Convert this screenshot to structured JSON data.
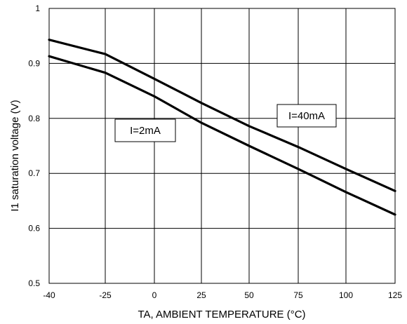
{
  "chart_data": {
    "type": "line",
    "xlabel": "TA, AMBIENT TEMPERATURE (°C)",
    "ylabel": "I1 saturation voltage (V)",
    "xlim": [
      -40,
      125
    ],
    "ylim": [
      0.5,
      1.0
    ],
    "x_ticks": [
      -40,
      -25,
      0,
      25,
      50,
      75,
      100,
      125
    ],
    "x_tick_labels": [
      "-40",
      "-25",
      "0",
      "25",
      "50",
      "75",
      "100",
      "125"
    ],
    "y_ticks": [
      0.5,
      0.6,
      0.7,
      0.8,
      0.9,
      1.0
    ],
    "y_tick_labels": [
      "0.5",
      "0.6",
      "0.7",
      "0.8",
      "0.9",
      "1"
    ],
    "grid": true,
    "legend": "inline labels",
    "line_color": "#000000",
    "series": [
      {
        "name": "I=40mA",
        "x": [
          -40,
          -25,
          0,
          25,
          50,
          75,
          100,
          125
        ],
        "y": [
          0.943,
          0.917,
          0.872,
          0.828,
          0.786,
          0.748,
          0.708,
          0.668
        ]
      },
      {
        "name": "I=2mA",
        "x": [
          -40,
          -25,
          0,
          25,
          50,
          75,
          100,
          125
        ],
        "y": [
          0.913,
          0.883,
          0.84,
          0.792,
          0.75,
          0.708,
          0.666,
          0.625
        ]
      }
    ]
  }
}
